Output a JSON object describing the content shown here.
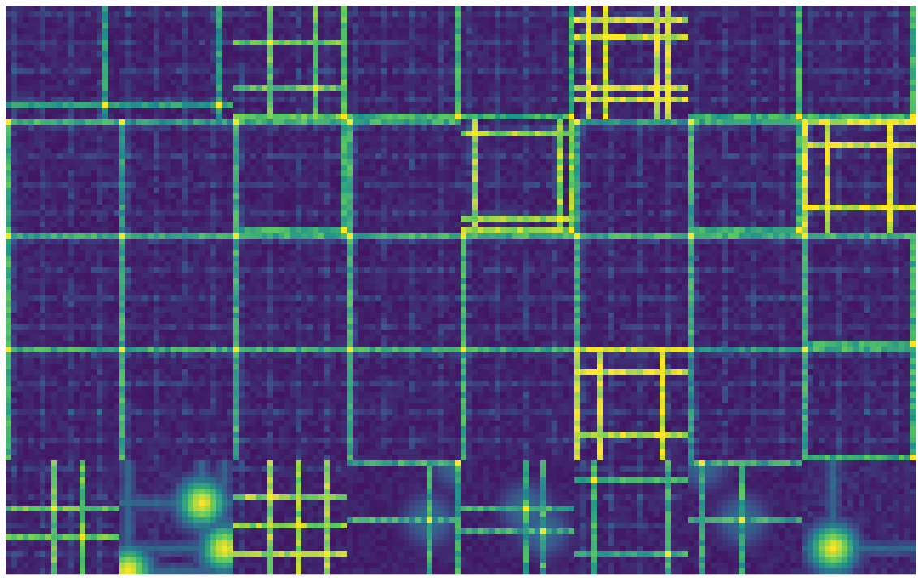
{
  "chart_data": {
    "type": "heatmap",
    "layout": {
      "rows": 5,
      "cols": 8
    },
    "matrix_size": 20,
    "colormap": [
      "#440154",
      "#3b528b",
      "#21918c",
      "#5ec962",
      "#fde725"
    ],
    "value_range": [
      0,
      1
    ],
    "grid": false,
    "legend": "none",
    "panels": [
      {
        "kind": "grid",
        "lines": [
          17
        ],
        "strength": 0.4
      },
      {
        "kind": "grid",
        "lines": [
          17
        ],
        "strength": 0.4
      },
      {
        "kind": "grid",
        "lines": [
          6,
          14,
          19
        ],
        "strength": 0.6
      },
      {
        "kind": "grid",
        "lines": [
          19
        ],
        "strength": 0.5
      },
      {
        "kind": "grid",
        "lines": [
          19
        ],
        "strength": 0.5
      },
      {
        "kind": "grid",
        "lines": [
          2,
          5,
          14,
          16
        ],
        "strength": 0.8
      },
      {
        "kind": "grid",
        "lines": [
          19
        ],
        "strength": 0.5
      },
      {
        "kind": "grid",
        "lines": [
          19
        ],
        "strength": 0.5
      },
      {
        "kind": "grid",
        "lines": [
          0
        ],
        "strength": 0.5
      },
      {
        "kind": "grid",
        "lines": [
          0
        ],
        "strength": 0.4
      },
      {
        "kind": "grid",
        "lines": [
          0,
          19
        ],
        "strength": 0.5
      },
      {
        "kind": "grid",
        "lines": [
          0
        ],
        "strength": 0.5
      },
      {
        "kind": "grid",
        "lines": [
          2,
          17,
          19
        ],
        "strength": 0.7
      },
      {
        "kind": "grid",
        "lines": [
          0
        ],
        "strength": 0.4
      },
      {
        "kind": "grid",
        "lines": [
          0,
          19
        ],
        "strength": 0.5
      },
      {
        "kind": "grid",
        "lines": [
          0,
          4,
          15
        ],
        "strength": 0.8
      },
      {
        "kind": "grid",
        "lines": [
          0
        ],
        "strength": 0.5
      },
      {
        "kind": "grid",
        "lines": [
          0
        ],
        "strength": 0.5
      },
      {
        "kind": "grid",
        "lines": [
          0
        ],
        "strength": 0.5
      },
      {
        "kind": "grid",
        "lines": [
          0
        ],
        "strength": 0.5
      },
      {
        "kind": "grid",
        "lines": [
          0
        ],
        "strength": 0.5
      },
      {
        "kind": "grid",
        "lines": [
          0
        ],
        "strength": 0.5
      },
      {
        "kind": "grid",
        "lines": [
          0
        ],
        "strength": 0.5
      },
      {
        "kind": "grid",
        "lines": [
          0,
          19
        ],
        "strength": 0.5
      },
      {
        "kind": "grid",
        "lines": [
          0
        ],
        "strength": 0.5
      },
      {
        "kind": "grid",
        "lines": [
          0
        ],
        "strength": 0.5
      },
      {
        "kind": "grid",
        "lines": [
          0
        ],
        "strength": 0.5
      },
      {
        "kind": "grid",
        "lines": [
          0
        ],
        "strength": 0.5
      },
      {
        "kind": "grid",
        "lines": [
          0
        ],
        "strength": 0.5
      },
      {
        "kind": "grid",
        "lines": [
          0,
          4,
          15
        ],
        "strength": 0.8
      },
      {
        "kind": "grid",
        "lines": [
          0
        ],
        "strength": 0.4
      },
      {
        "kind": "grid",
        "lines": [
          0,
          19
        ],
        "strength": 0.5
      },
      {
        "kind": "grid",
        "lines": [
          8,
          13
        ],
        "strength": 0.6
      },
      {
        "kind": "smooth",
        "peaks": [
          [
            7,
            14
          ],
          [
            15,
            18
          ],
          [
            19,
            1
          ]
        ]
      },
      {
        "kind": "grid",
        "lines": [
          6,
          11,
          16
        ],
        "strength": 0.7
      },
      {
        "kind": "cross",
        "peaks": [
          [
            10,
            14
          ],
          [
            0,
            19
          ]
        ]
      },
      {
        "kind": "cross",
        "peaks": [
          [
            8,
            11
          ],
          [
            12,
            14
          ]
        ]
      },
      {
        "kind": "grid",
        "lines": [
          3,
          16
        ],
        "strength": 0.5
      },
      {
        "kind": "cross",
        "peaks": [
          [
            10,
            9
          ],
          [
            0,
            2
          ]
        ]
      },
      {
        "kind": "smooth",
        "peaks": [
          [
            15,
            5
          ]
        ]
      }
    ]
  }
}
